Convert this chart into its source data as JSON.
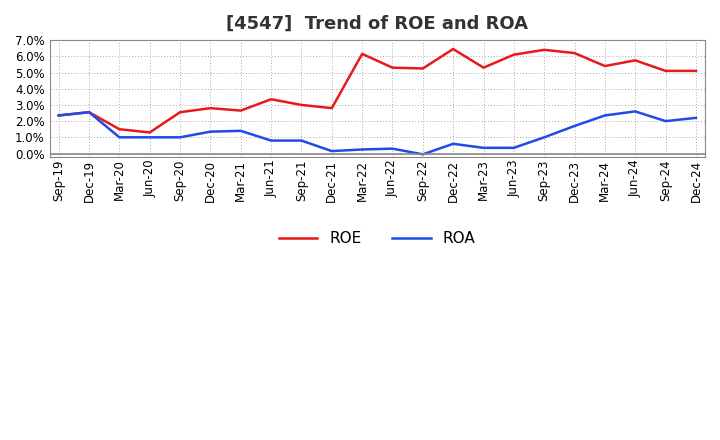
{
  "title": "[4547]  Trend of ROE and ROA",
  "x_labels": [
    "Sep-19",
    "Dec-19",
    "Mar-20",
    "Jun-20",
    "Sep-20",
    "Dec-20",
    "Mar-21",
    "Jun-21",
    "Sep-21",
    "Dec-21",
    "Mar-22",
    "Jun-22",
    "Sep-22",
    "Dec-22",
    "Mar-23",
    "Jun-23",
    "Sep-23",
    "Dec-23",
    "Mar-24",
    "Jun-24",
    "Sep-24",
    "Dec-24"
  ],
  "roe": [
    2.35,
    2.55,
    1.5,
    1.3,
    2.55,
    2.8,
    2.65,
    3.35,
    3.0,
    2.8,
    6.15,
    5.3,
    5.25,
    6.45,
    5.3,
    6.1,
    6.4,
    6.2,
    5.4,
    5.75,
    5.1,
    5.1
  ],
  "roa": [
    2.35,
    2.55,
    1.0,
    1.0,
    1.0,
    1.35,
    1.4,
    0.8,
    0.8,
    0.15,
    0.25,
    0.3,
    -0.05,
    0.6,
    0.35,
    0.35,
    1.0,
    1.7,
    2.35,
    2.6,
    2.0,
    2.2
  ],
  "roe_color": "#e8191a",
  "roa_color": "#1f4be8",
  "ylim": [
    -0.2,
    7.0
  ],
  "yticks": [
    0.0,
    1.0,
    2.0,
    3.0,
    4.0,
    5.0,
    6.0,
    7.0
  ],
  "background_color": "#ffffff",
  "grid_color": "#aaaaaa",
  "title_fontsize": 13,
  "legend_fontsize": 11,
  "tick_fontsize": 8.5,
  "title_color": "#333333"
}
